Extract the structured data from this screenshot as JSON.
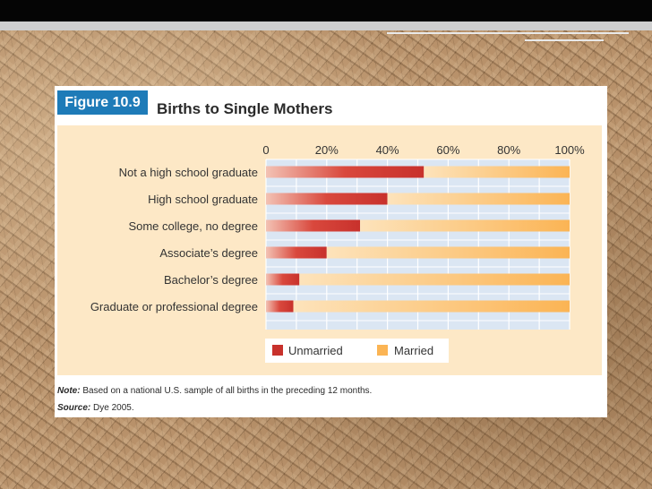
{
  "figure": {
    "tag": "Figure 10.9",
    "title": "Births to Single Mothers",
    "note_label": "Note:",
    "note_text": " Based on a national U.S. sample of all births in the preceding 12 months.",
    "source_label": "Source:",
    "source_text": " Dye 2005."
  },
  "chart_data": {
    "type": "bar",
    "orientation": "horizontal",
    "stacked": true,
    "title": "Births to Single Mothers",
    "categories": [
      "Not a high school graduate",
      "High school graduate",
      "Some college, no degree",
      "Associate’s degree",
      "Bachelor’s degree",
      "Graduate or professional degree"
    ],
    "series": [
      {
        "name": "Unmarried",
        "values": [
          52,
          40,
          31,
          20,
          11,
          9
        ],
        "color": "#c8312c"
      },
      {
        "name": "Married",
        "values": [
          48,
          60,
          69,
          80,
          89,
          91
        ],
        "color": "#fbb454"
      }
    ],
    "xlim": [
      0,
      100
    ],
    "tick_values": [
      0,
      20,
      40,
      60,
      80,
      100
    ],
    "tick_labels": [
      "0",
      "20%",
      "40%",
      "60%",
      "80%",
      "100%"
    ],
    "grid": true,
    "legend_position": "bottom"
  },
  "colors": {
    "tag_bg": "#1e7bb8",
    "plot_bg": "#fde8c6",
    "grid_bg": "#dbe6f3",
    "grid_line": "#ffffff"
  }
}
